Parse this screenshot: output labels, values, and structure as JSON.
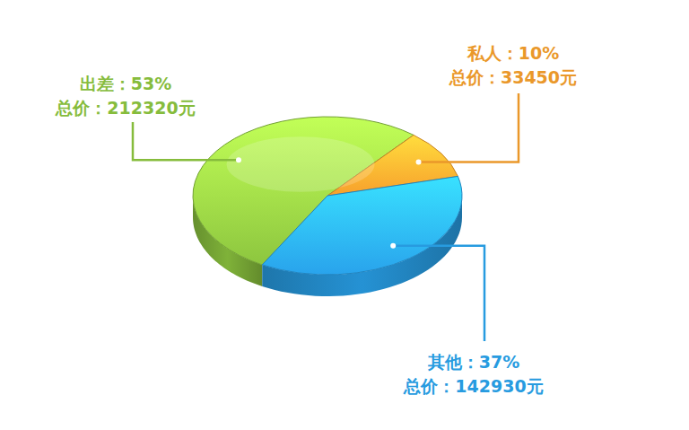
{
  "chart_data": {
    "type": "pie",
    "values": [
      53,
      10,
      37
    ],
    "value_labels": [
      "出差：53%",
      "私人：10%",
      "其他：37%"
    ],
    "annotations": [
      "总价：212320元",
      "总价：33450元",
      "总价：142930元"
    ],
    "colors": [
      "#8dc63f",
      "#f7a02c",
      "#29a3ec"
    ],
    "data_labels": true
  }
}
